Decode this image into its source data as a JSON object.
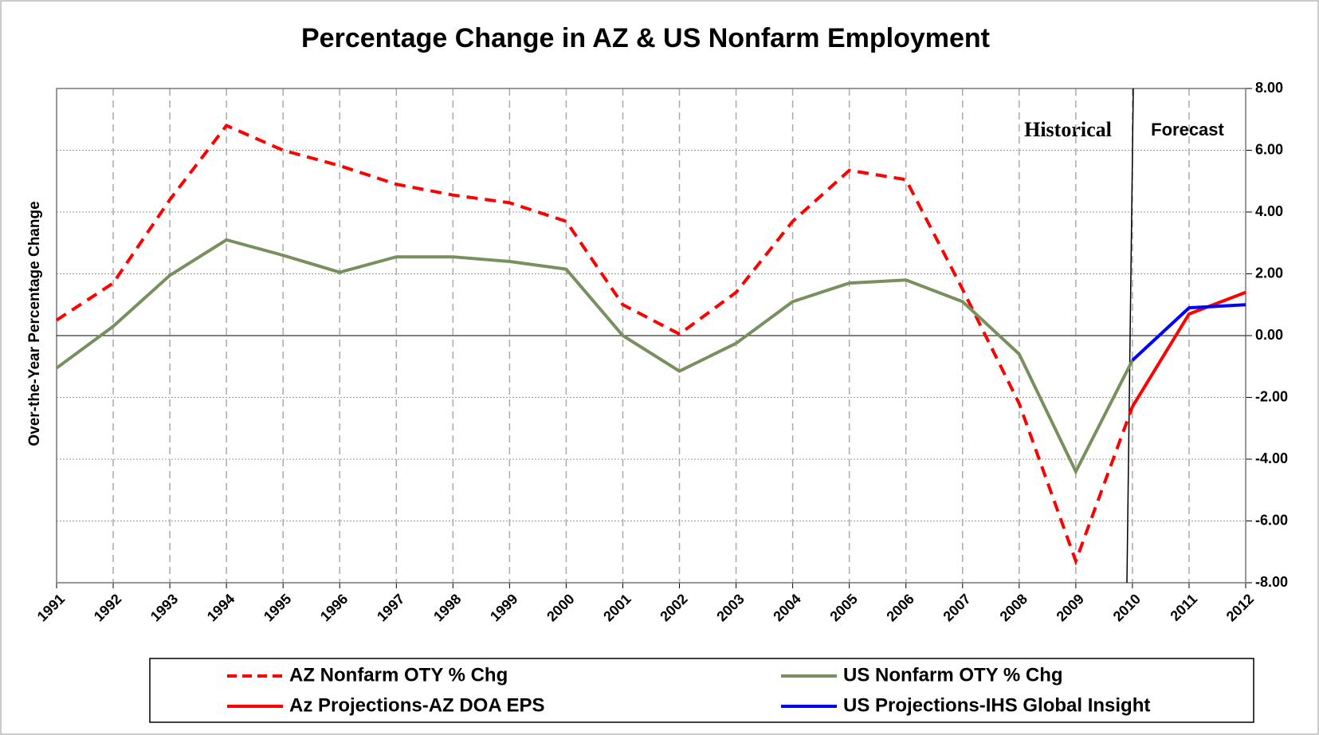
{
  "chart_data": {
    "type": "line",
    "title": "Percentage Change in AZ & US Nonfarm Employment",
    "y_label": "Over-the-Year Percentage Change",
    "annotations": [
      "Historical",
      "Forecast"
    ],
    "categories": [
      "1991",
      "1992",
      "1993",
      "1994",
      "1995",
      "1996",
      "1997",
      "1998",
      "1999",
      "2000",
      "2001",
      "2002",
      "2003",
      "2004",
      "2005",
      "2006",
      "2007",
      "2008",
      "2009",
      "2010",
      "2011",
      "2012"
    ],
    "series": [
      {
        "name": "AZ Nonfarm OTY % Chg",
        "color": "#ff0000",
        "line_style": "dashed",
        "values": [
          0.5,
          1.7,
          4.4,
          6.8,
          6.0,
          5.5,
          4.9,
          4.55,
          4.3,
          3.7,
          1.0,
          0.05,
          1.4,
          3.7,
          5.35,
          5.05,
          1.5,
          -2.2,
          -7.3,
          -2.3,
          null,
          null
        ]
      },
      {
        "name": "US Nonfarm OTY % Chg",
        "color": "#77905e",
        "line_style": "solid",
        "values": [
          -1.05,
          0.3,
          1.95,
          3.1,
          2.6,
          2.05,
          2.55,
          2.55,
          2.4,
          2.15,
          0.0,
          -1.15,
          -0.25,
          1.1,
          1.7,
          1.8,
          1.1,
          -0.6,
          -4.4,
          -0.8,
          null,
          null
        ]
      },
      {
        "name": "Az Projections-AZ DOA EPS",
        "color": "#ff0000",
        "line_style": "solid",
        "values": [
          null,
          null,
          null,
          null,
          null,
          null,
          null,
          null,
          null,
          null,
          null,
          null,
          null,
          null,
          null,
          null,
          null,
          null,
          null,
          -2.3,
          0.7,
          1.4
        ]
      },
      {
        "name": "US Projections-IHS Global Insight",
        "color": "#0000ff",
        "line_style": "solid",
        "values": [
          null,
          null,
          null,
          null,
          null,
          null,
          null,
          null,
          null,
          null,
          null,
          null,
          null,
          null,
          null,
          null,
          null,
          null,
          null,
          -0.8,
          0.9,
          1.0
        ]
      }
    ],
    "ylim": [
      -8,
      8
    ],
    "yticks": [
      {
        "value": -8,
        "label": "-8.00"
      },
      {
        "value": -6,
        "label": "-6.00"
      },
      {
        "value": -4,
        "label": "-4.00"
      },
      {
        "value": -2,
        "label": "-2.00"
      },
      {
        "value": 0,
        "label": "0.00"
      },
      {
        "value": 2,
        "label": "2.00"
      },
      {
        "value": 4,
        "label": "4.00"
      },
      {
        "value": 6,
        "label": "6.00"
      },
      {
        "value": 8,
        "label": "8.00"
      }
    ],
    "grid": true
  }
}
